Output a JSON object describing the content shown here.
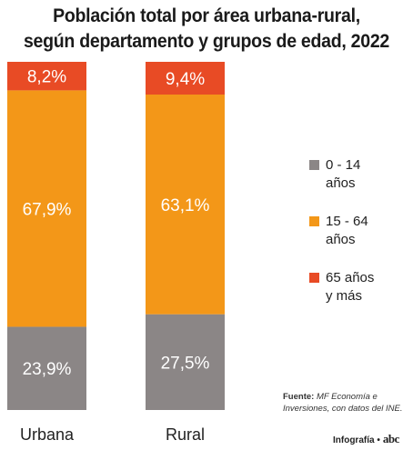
{
  "chart_data": {
    "type": "stacked-bar",
    "title_lines": [
      "Población total por área urbana-rural,",
      "según departamento y grupos de edad, 2022"
    ],
    "categories": [
      "Urbana",
      "Rural"
    ],
    "series": [
      {
        "name": "0 - 14 años",
        "legend_lines": [
          "0 - 14",
          "años"
        ],
        "color": "#8b8686",
        "values": [
          23.9,
          27.5
        ],
        "labels": [
          "23,9%",
          "27,5%"
        ]
      },
      {
        "name": "15 - 64 años",
        "legend_lines": [
          "15 - 64",
          "años"
        ],
        "color": "#f39718",
        "values": [
          67.9,
          63.1
        ],
        "labels": [
          "67,9%",
          "63,1%"
        ]
      },
      {
        "name": "65 años y más",
        "legend_lines": [
          "65 años",
          "y más"
        ],
        "color": "#e84b25",
        "values": [
          8.2,
          9.4
        ],
        "labels": [
          "8,2%",
          "9,4%"
        ]
      }
    ],
    "ylim": [
      0,
      100
    ],
    "legend_position": "right"
  },
  "source": {
    "label": "Fuente:",
    "lines": [
      "MF Economía e",
      "Inversiones, con datos del INE."
    ]
  },
  "credit": {
    "text": "Infografía •",
    "logo": "abc"
  }
}
